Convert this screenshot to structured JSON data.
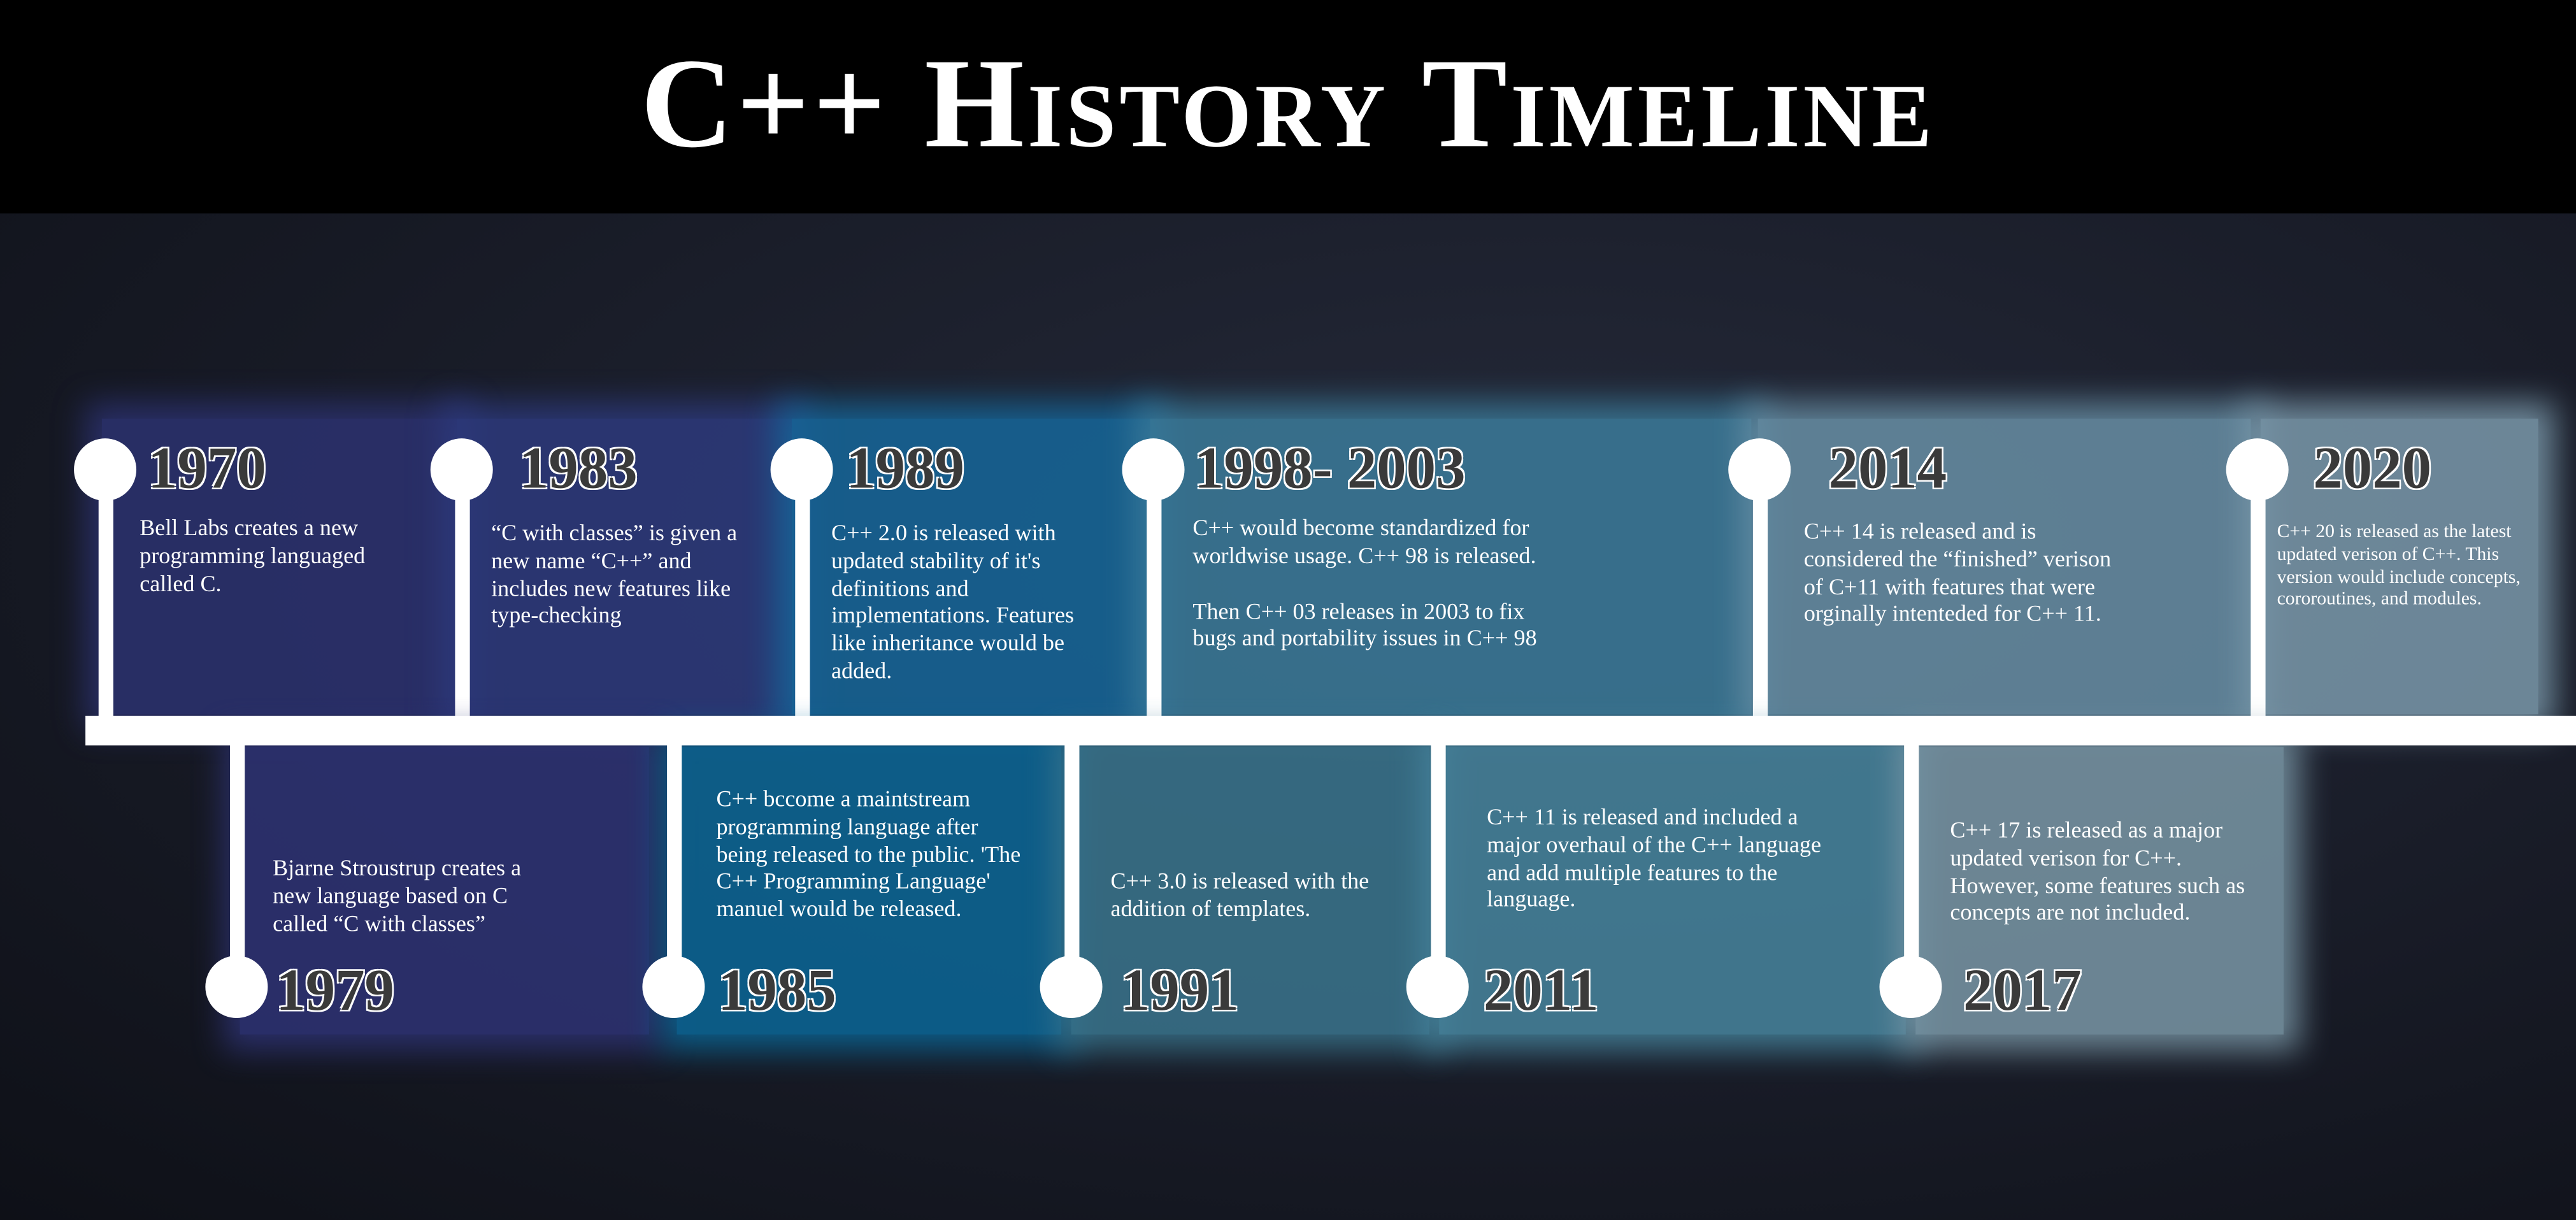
{
  "header": {
    "title": "C++ History Timeline"
  },
  "top_events": [
    {
      "year": "1970",
      "paragraphs": [
        "Bell Labs creates a new programming languaged called C."
      ]
    },
    {
      "year": "1983",
      "paragraphs": [
        "“C with classes” is given a new name “C++” and includes new features like type-checking"
      ]
    },
    {
      "year": "1989",
      "paragraphs": [
        "C++ 2.0 is released with updated stability of it's definitions and implementations. Features like inheritance would be added."
      ]
    },
    {
      "year": "1998- 2003",
      "paragraphs": [
        "C++ would become standardized for worldwise usage. C++ 98 is released.",
        "Then C++ 03 releases in 2003 to fix bugs and portability issues in C++ 98"
      ]
    },
    {
      "year": "2014",
      "paragraphs": [
        "C++ 14 is released and is considered the “finished” verison of C+11 with features that were orginally intenteded for C++ 11."
      ]
    },
    {
      "year": "2020",
      "paragraphs": [
        "C++ 20 is released as the latest updated verison of C++. This version would include concepts, cororoutines, and modules."
      ]
    }
  ],
  "bottom_events": [
    {
      "year": "1979",
      "paragraphs": [
        "Bjarne Stroustrup creates a new language based on C called “C with classes”"
      ]
    },
    {
      "year": "1985",
      "paragraphs": [
        "C++ bccome a maintstream programming language after being released to the public. 'The C++ Programming Language' manuel would be released."
      ]
    },
    {
      "year": "1991",
      "paragraphs": [
        "C++ 3.0 is released with the addition of templates."
      ]
    },
    {
      "year": "2011",
      "paragraphs": [
        "C++ 11 is released and included a major overhaul of the C++ language and add multiple features to the language."
      ]
    },
    {
      "year": "2017",
      "paragraphs": [
        "C++ 17 is released as a major updated verison for C++. However, some features such as concepts are not included."
      ]
    }
  ]
}
